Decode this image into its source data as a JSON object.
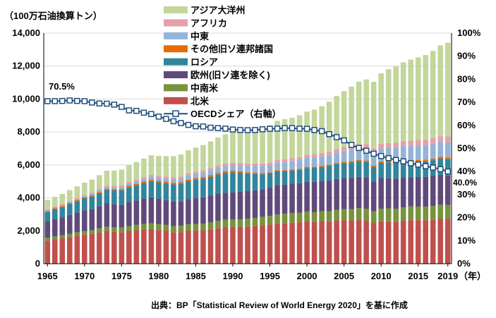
{
  "chart_data": {
    "type": "bar",
    "subtype": "stacked bar with line on secondary axis",
    "ylabel": "（100万石油換算トン）",
    "xunit": "（年）",
    "source": "出典：BP「Statistical Review of World Energy 2020」を基に作成",
    "ylim": [
      0,
      14000
    ],
    "y2lim": [
      0,
      100
    ],
    "yticks": [
      "0",
      "2,000",
      "4,000",
      "6,000",
      "8,000",
      "10,000",
      "12,000",
      "14,000"
    ],
    "y2ticks": [
      "0%",
      "10%",
      "20%",
      "30%",
      "40%",
      "50%",
      "60%",
      "70%",
      "80%",
      "90%",
      "100%"
    ],
    "xticks": [
      "1965",
      "1970",
      "1975",
      "1980",
      "1985",
      "1990",
      "1995",
      "2000",
      "2005",
      "2010",
      "2015",
      "2019"
    ],
    "years": [
      1965,
      1966,
      1967,
      1968,
      1969,
      1970,
      1971,
      1972,
      1973,
      1974,
      1975,
      1976,
      1977,
      1978,
      1979,
      1980,
      1981,
      1982,
      1983,
      1984,
      1985,
      1986,
      1987,
      1988,
      1989,
      1990,
      1991,
      1992,
      1993,
      1994,
      1995,
      1996,
      1997,
      1998,
      1999,
      2000,
      2001,
      2002,
      2003,
      2004,
      2005,
      2006,
      2007,
      2008,
      2009,
      2010,
      2011,
      2012,
      2013,
      2014,
      2015,
      2016,
      2017,
      2018,
      2019
    ],
    "series": [
      {
        "name": "北米",
        "color": "#c0504d",
        "values": [
          1400,
          1480,
          1540,
          1620,
          1700,
          1760,
          1810,
          1900,
          1970,
          1930,
          1900,
          1990,
          2040,
          2080,
          2100,
          2040,
          1990,
          1920,
          1920,
          2010,
          2020,
          2030,
          2090,
          2170,
          2230,
          2230,
          2230,
          2260,
          2300,
          2340,
          2380,
          2450,
          2470,
          2490,
          2520,
          2570,
          2530,
          2570,
          2580,
          2630,
          2650,
          2630,
          2670,
          2610,
          2480,
          2580,
          2580,
          2540,
          2610,
          2650,
          2640,
          2640,
          2660,
          2740,
          2720
        ]
      },
      {
        "name": "中南米",
        "color": "#77933c",
        "values": [
          170,
          180,
          190,
          200,
          210,
          220,
          230,
          250,
          270,
          280,
          290,
          300,
          320,
          330,
          350,
          360,
          370,
          370,
          380,
          390,
          400,
          410,
          420,
          430,
          440,
          450,
          460,
          470,
          480,
          500,
          520,
          540,
          560,
          580,
          580,
          600,
          600,
          610,
          610,
          640,
          660,
          680,
          710,
          730,
          710,
          760,
          780,
          800,
          810,
          830,
          830,
          830,
          840,
          840,
          840
        ]
      },
      {
        "name": "欧州(旧ソ連を除く)",
        "color": "#604a7b",
        "values": [
          1000,
          1040,
          1080,
          1140,
          1200,
          1260,
          1290,
          1350,
          1420,
          1400,
          1390,
          1460,
          1480,
          1530,
          1580,
          1540,
          1500,
          1480,
          1480,
          1520,
          1570,
          1590,
          1620,
          1640,
          1650,
          1660,
          1680,
          1680,
          1680,
          1690,
          1720,
          1780,
          1780,
          1790,
          1790,
          1810,
          1840,
          1830,
          1860,
          1880,
          1890,
          1910,
          1900,
          1900,
          1800,
          1860,
          1830,
          1830,
          1830,
          1770,
          1800,
          1810,
          1830,
          1820,
          1800
        ]
      },
      {
        "name": "ロシア",
        "color": "#31859c",
        "values": [
          570,
          600,
          630,
          660,
          690,
          720,
          750,
          780,
          810,
          840,
          870,
          900,
          930,
          960,
          990,
          1010,
          1030,
          1050,
          1070,
          1090,
          1110,
          1130,
          1150,
          1170,
          1190,
          1200,
          1150,
          1050,
          990,
          900,
          860,
          840,
          800,
          790,
          810,
          830,
          850,
          860,
          880,
          890,
          900,
          920,
          930,
          940,
          890,
          930,
          960,
          960,
          950,
          950,
          940,
          940,
          960,
          980,
          980
        ]
      },
      {
        "name": "その他旧ソ連邦諸国",
        "color": "#e36c09",
        "values": [
          60,
          62,
          64,
          66,
          68,
          70,
          72,
          74,
          76,
          78,
          80,
          82,
          84,
          86,
          88,
          90,
          92,
          94,
          96,
          98,
          100,
          102,
          104,
          106,
          108,
          110,
          100,
          90,
          80,
          75,
          70,
          70,
          70,
          70,
          70,
          72,
          74,
          76,
          78,
          80,
          82,
          84,
          86,
          88,
          85,
          88,
          90,
          92,
          94,
          96,
          98,
          100,
          102,
          104,
          106
        ]
      },
      {
        "name": "中東",
        "color": "#95b3d7",
        "values": [
          60,
          65,
          70,
          75,
          80,
          90,
          100,
          110,
          120,
          130,
          140,
          150,
          165,
          180,
          195,
          200,
          210,
          225,
          240,
          255,
          270,
          285,
          300,
          315,
          330,
          345,
          360,
          380,
          400,
          420,
          440,
          460,
          480,
          500,
          520,
          540,
          560,
          580,
          600,
          630,
          660,
          690,
          720,
          750,
          770,
          790,
          810,
          830,
          850,
          870,
          880,
          890,
          900,
          910,
          920
        ]
      },
      {
        "name": "アフリカ",
        "color": "#e6a0a8",
        "values": [
          50,
          52,
          55,
          58,
          60,
          64,
          68,
          72,
          76,
          80,
          84,
          88,
          92,
          96,
          100,
          104,
          108,
          112,
          116,
          120,
          124,
          128,
          132,
          136,
          140,
          144,
          148,
          152,
          156,
          160,
          164,
          170,
          176,
          182,
          188,
          194,
          200,
          206,
          212,
          218,
          224,
          230,
          240,
          250,
          260,
          270,
          280,
          290,
          300,
          310,
          320,
          330,
          340,
          350,
          360
        ]
      },
      {
        "name": "アジア大洋州",
        "color": "#c3d69b",
        "values": [
          560,
          580,
          610,
          650,
          690,
          740,
          790,
          840,
          900,
          920,
          960,
          1010,
          1060,
          1130,
          1180,
          1200,
          1230,
          1280,
          1330,
          1400,
          1460,
          1530,
          1610,
          1690,
          1770,
          1840,
          1900,
          1970,
          2050,
          2150,
          2260,
          2360,
          2440,
          2460,
          2530,
          2620,
          2700,
          2830,
          3020,
          3220,
          3410,
          3610,
          3800,
          3920,
          4050,
          4280,
          4480,
          4640,
          4780,
          4920,
          5020,
          5130,
          5290,
          5510,
          5690
        ]
      }
    ],
    "line": {
      "name": "OECDシェア（右軸）",
      "color": "#1f4e79",
      "marker_fill": "#ffffff",
      "values": [
        70.5,
        70.5,
        70.6,
        70.8,
        70.6,
        70.5,
        69.9,
        69.5,
        69.4,
        69.0,
        68.0,
        66.5,
        66.3,
        65.5,
        64.9,
        63.8,
        62.8,
        61.8,
        61.0,
        60.2,
        59.6,
        59.5,
        59.0,
        58.8,
        58.6,
        58.2,
        58.0,
        57.9,
        58.0,
        58.3,
        58.5,
        58.6,
        58.8,
        58.8,
        58.6,
        58.5,
        58.0,
        57.5,
        56.2,
        54.9,
        53.5,
        51.5,
        50.2,
        49.0,
        47.7,
        46.7,
        45.8,
        45.0,
        44.4,
        43.6,
        43.0,
        42.3,
        41.7,
        41.0,
        40.0
      ],
      "first_label": "70.5%",
      "last_label": "40.0%"
    }
  }
}
